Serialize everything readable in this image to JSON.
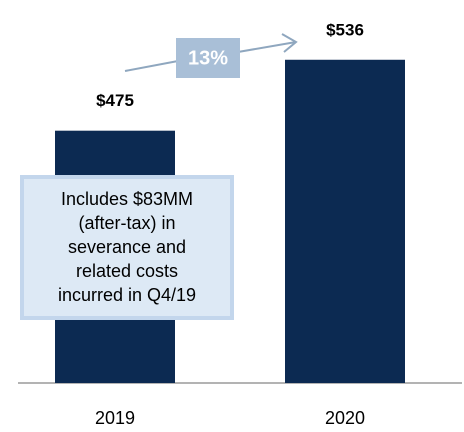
{
  "chart_data": {
    "type": "bar",
    "categories": [
      "2019",
      "2020"
    ],
    "values": [
      475,
      536
    ],
    "value_labels": [
      "$475",
      "$536"
    ],
    "color": "#0c2a52",
    "ylim": [
      258,
      553
    ],
    "growth_label": "13%",
    "callout": [
      "Includes $83MM",
      "(after-tax) in",
      "severance and",
      "related costs",
      "incurred in Q4/19"
    ]
  }
}
